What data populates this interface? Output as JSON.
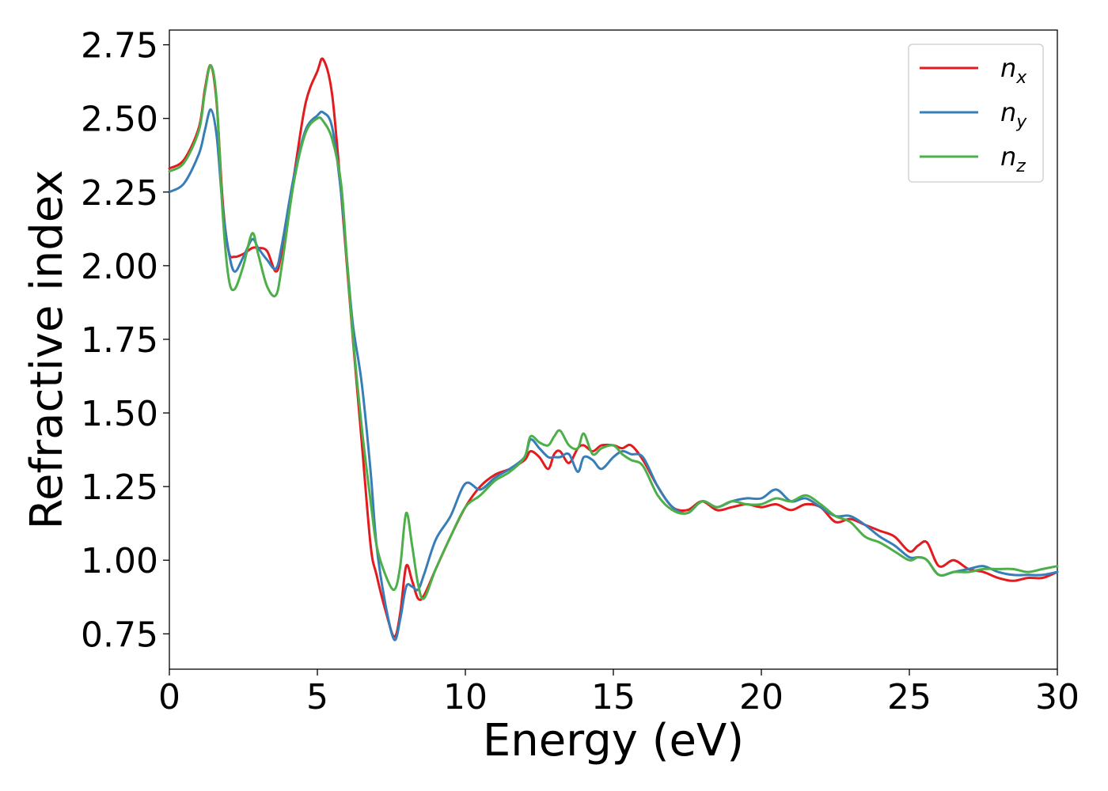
{
  "chart_data": {
    "type": "line",
    "xlabel": "Energy (eV)",
    "ylabel": "Refractive index",
    "xlim": [
      0,
      30
    ],
    "ylim": [
      0.63,
      2.8
    ],
    "xticks": [
      0,
      5,
      10,
      15,
      20,
      25,
      30
    ],
    "yticks": [
      0.75,
      1.0,
      1.25,
      1.5,
      1.75,
      2.0,
      2.25,
      2.5,
      2.75
    ],
    "xtick_labels": [
      "0",
      "5",
      "10",
      "15",
      "20",
      "25",
      "30"
    ],
    "ytick_labels": [
      "0.75",
      "1.00",
      "1.25",
      "1.50",
      "1.75",
      "2.00",
      "2.25",
      "2.50",
      "2.75"
    ],
    "grid": false,
    "legend_position": "top-right",
    "series": [
      {
        "name": "n",
        "subscript": "x",
        "color": "#e41a1c",
        "x": [
          0,
          0.5,
          1.0,
          1.2,
          1.4,
          1.6,
          1.8,
          2.0,
          2.2,
          2.5,
          2.8,
          3.0,
          3.3,
          3.6,
          3.8,
          4.2,
          4.6,
          5.0,
          5.2,
          5.5,
          5.8,
          6.0,
          6.2,
          6.5,
          6.8,
          7.0,
          7.3,
          7.6,
          7.8,
          8.0,
          8.2,
          8.4,
          8.6,
          9.0,
          9.5,
          10.0,
          10.5,
          11.0,
          11.5,
          12.0,
          12.2,
          12.5,
          12.8,
          13.0,
          13.2,
          13.5,
          13.8,
          14.0,
          14.3,
          14.6,
          15.0,
          15.3,
          15.6,
          16.0,
          16.5,
          17.0,
          17.5,
          18.0,
          18.5,
          19.0,
          19.5,
          20.0,
          20.5,
          21.0,
          21.5,
          22.0,
          22.5,
          23.0,
          23.5,
          24.0,
          24.5,
          25.0,
          25.3,
          25.6,
          26.0,
          26.5,
          27.0,
          27.5,
          28.0,
          28.5,
          29.0,
          29.5,
          30.0
        ],
        "y": [
          2.33,
          2.36,
          2.47,
          2.6,
          2.68,
          2.55,
          2.22,
          2.05,
          2.03,
          2.04,
          2.06,
          2.06,
          2.05,
          1.98,
          2.05,
          2.3,
          2.55,
          2.66,
          2.7,
          2.58,
          2.25,
          2.0,
          1.75,
          1.4,
          1.05,
          0.95,
          0.83,
          0.74,
          0.82,
          0.98,
          0.93,
          0.87,
          0.88,
          0.97,
          1.08,
          1.18,
          1.25,
          1.29,
          1.31,
          1.34,
          1.37,
          1.35,
          1.31,
          1.36,
          1.37,
          1.33,
          1.38,
          1.39,
          1.37,
          1.39,
          1.39,
          1.38,
          1.39,
          1.34,
          1.25,
          1.18,
          1.17,
          1.2,
          1.17,
          1.18,
          1.19,
          1.18,
          1.19,
          1.17,
          1.19,
          1.18,
          1.13,
          1.14,
          1.12,
          1.1,
          1.08,
          1.03,
          1.05,
          1.06,
          0.98,
          1.0,
          0.97,
          0.96,
          0.94,
          0.93,
          0.94,
          0.94,
          0.96
        ]
      },
      {
        "name": "n",
        "subscript": "y",
        "color": "#377eb8",
        "x": [
          0,
          0.5,
          1.0,
          1.2,
          1.4,
          1.6,
          1.8,
          2.0,
          2.2,
          2.5,
          2.8,
          3.0,
          3.3,
          3.6,
          3.8,
          4.2,
          4.6,
          5.0,
          5.2,
          5.5,
          5.8,
          6.0,
          6.2,
          6.5,
          6.8,
          7.0,
          7.3,
          7.6,
          7.8,
          8.0,
          8.2,
          8.4,
          8.6,
          9.0,
          9.5,
          10.0,
          10.5,
          11.0,
          11.5,
          12.0,
          12.2,
          12.5,
          12.8,
          13.0,
          13.2,
          13.5,
          13.8,
          14.0,
          14.3,
          14.6,
          15.0,
          15.3,
          15.6,
          16.0,
          16.5,
          17.0,
          17.5,
          18.0,
          18.5,
          19.0,
          19.5,
          20.0,
          20.5,
          21.0,
          21.5,
          22.0,
          22.5,
          23.0,
          23.5,
          24.0,
          24.5,
          25.0,
          25.3,
          25.6,
          26.0,
          26.5,
          27.0,
          27.5,
          28.0,
          28.5,
          29.0,
          29.5,
          30.0
        ],
        "y": [
          2.25,
          2.28,
          2.38,
          2.46,
          2.53,
          2.44,
          2.2,
          2.05,
          1.98,
          2.03,
          2.09,
          2.06,
          2.02,
          1.99,
          2.07,
          2.3,
          2.46,
          2.51,
          2.52,
          2.47,
          2.25,
          2.02,
          1.8,
          1.6,
          1.3,
          1.05,
          0.85,
          0.73,
          0.8,
          0.91,
          0.91,
          0.9,
          0.95,
          1.07,
          1.15,
          1.26,
          1.24,
          1.28,
          1.31,
          1.35,
          1.41,
          1.38,
          1.35,
          1.35,
          1.35,
          1.36,
          1.3,
          1.35,
          1.34,
          1.31,
          1.35,
          1.37,
          1.36,
          1.35,
          1.25,
          1.18,
          1.16,
          1.2,
          1.18,
          1.2,
          1.21,
          1.21,
          1.24,
          1.2,
          1.21,
          1.18,
          1.15,
          1.15,
          1.12,
          1.08,
          1.05,
          1.01,
          1.01,
          1.0,
          0.95,
          0.96,
          0.97,
          0.98,
          0.96,
          0.95,
          0.95,
          0.95,
          0.96
        ]
      },
      {
        "name": "n",
        "subscript": "z",
        "color": "#4daf4a",
        "x": [
          0,
          0.5,
          1.0,
          1.2,
          1.4,
          1.6,
          1.8,
          2.0,
          2.2,
          2.5,
          2.8,
          3.0,
          3.3,
          3.6,
          3.8,
          4.2,
          4.6,
          5.0,
          5.2,
          5.5,
          5.8,
          6.0,
          6.2,
          6.5,
          6.8,
          7.0,
          7.3,
          7.6,
          7.8,
          8.0,
          8.2,
          8.4,
          8.6,
          9.0,
          9.5,
          10.0,
          10.5,
          11.0,
          11.5,
          12.0,
          12.2,
          12.5,
          12.8,
          13.0,
          13.2,
          13.5,
          13.8,
          14.0,
          14.3,
          14.6,
          15.0,
          15.3,
          15.6,
          16.0,
          16.5,
          17.0,
          17.5,
          18.0,
          18.5,
          19.0,
          19.5,
          20.0,
          20.5,
          21.0,
          21.5,
          22.0,
          22.5,
          23.0,
          23.5,
          24.0,
          24.5,
          25.0,
          25.3,
          25.6,
          26.0,
          26.5,
          27.0,
          27.5,
          28.0,
          28.5,
          29.0,
          29.5,
          30.0
        ],
        "y": [
          2.32,
          2.35,
          2.46,
          2.59,
          2.68,
          2.56,
          2.18,
          1.96,
          1.92,
          2.0,
          2.11,
          2.04,
          1.93,
          1.9,
          2.0,
          2.28,
          2.45,
          2.5,
          2.49,
          2.43,
          2.28,
          2.02,
          1.76,
          1.45,
          1.2,
          1.05,
          0.95,
          0.9,
          0.98,
          1.16,
          1.05,
          0.92,
          0.87,
          0.97,
          1.08,
          1.18,
          1.22,
          1.27,
          1.3,
          1.35,
          1.42,
          1.4,
          1.39,
          1.42,
          1.44,
          1.39,
          1.38,
          1.43,
          1.36,
          1.38,
          1.39,
          1.36,
          1.34,
          1.32,
          1.22,
          1.17,
          1.16,
          1.2,
          1.18,
          1.2,
          1.19,
          1.19,
          1.21,
          1.2,
          1.22,
          1.19,
          1.15,
          1.13,
          1.08,
          1.06,
          1.03,
          1.0,
          1.01,
          1.0,
          0.95,
          0.96,
          0.96,
          0.97,
          0.97,
          0.97,
          0.96,
          0.97,
          0.98
        ]
      }
    ]
  }
}
